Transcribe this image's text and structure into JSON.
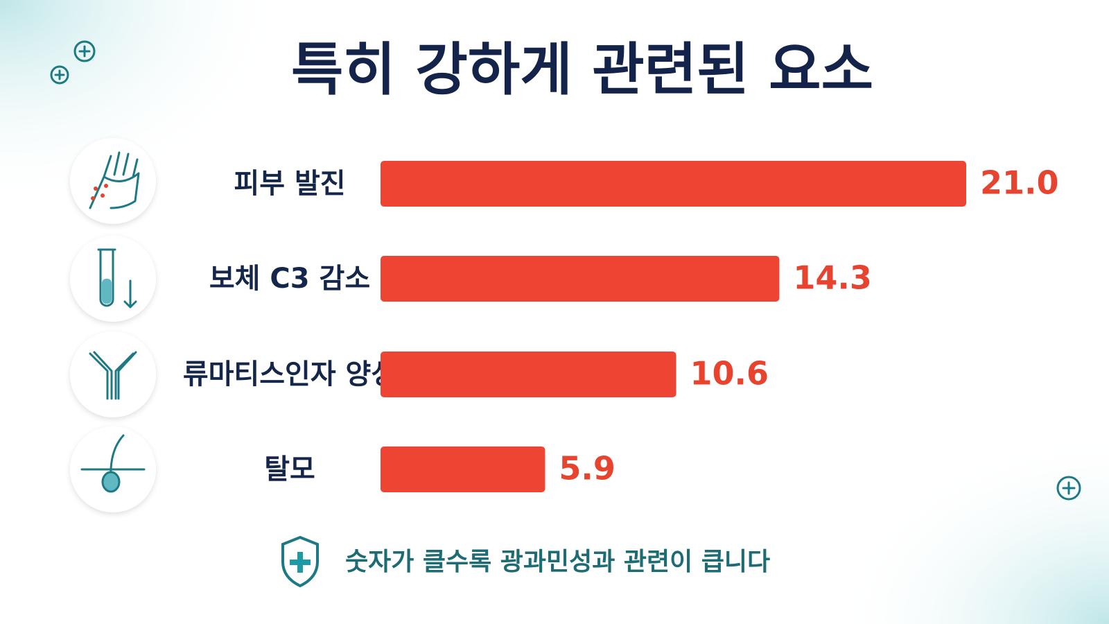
{
  "chart_data": {
    "type": "bar",
    "orientation": "horizontal",
    "title": "특히 강하게 관련된 요소",
    "categories": [
      "피부 발진",
      "보체 C3 감소",
      "류마티스인자 양성",
      "탈모"
    ],
    "values": [
      21.0,
      14.3,
      10.6,
      5.9
    ],
    "value_labels": [
      "21.0",
      "14.3",
      "10.6",
      "5.9"
    ],
    "color": "#ee4433",
    "caption": "숫자가 클수록 광과민성과 관련이 큽니다"
  }
}
